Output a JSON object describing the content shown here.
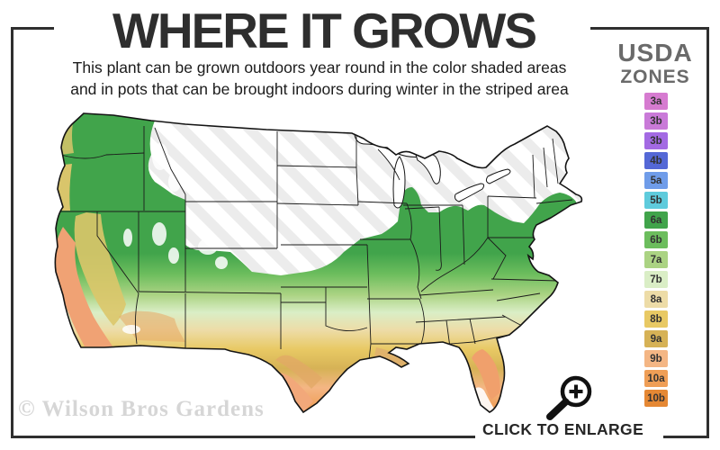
{
  "header": {
    "title": "WHERE IT GROWS",
    "subtitle_line1": "This plant can be grown outdoors year round in the color shaded areas",
    "subtitle_line2": "and in pots that can be brought indoors during winter in the striped area"
  },
  "legend": {
    "title_line1": "USDA",
    "title_line2": "ZONES",
    "zones": [
      {
        "label": "3a",
        "color": "#d67bd0"
      },
      {
        "label": "3b",
        "color": "#c97ad8"
      },
      {
        "label": "3b",
        "color": "#a36ae3"
      },
      {
        "label": "4b",
        "color": "#5468d6"
      },
      {
        "label": "5a",
        "color": "#6f9ce9"
      },
      {
        "label": "5b",
        "color": "#5ecbdc"
      },
      {
        "label": "6a",
        "color": "#41a44b"
      },
      {
        "label": "6b",
        "color": "#6cbd5d"
      },
      {
        "label": "7a",
        "color": "#abd383"
      },
      {
        "label": "7b",
        "color": "#daeec6"
      },
      {
        "label": "8a",
        "color": "#eddca7"
      },
      {
        "label": "8b",
        "color": "#e8c964"
      },
      {
        "label": "9a",
        "color": "#d6b256"
      },
      {
        "label": "9b",
        "color": "#f4b684"
      },
      {
        "label": "10a",
        "color": "#ef9e56"
      },
      {
        "label": "10b",
        "color": "#e58834"
      }
    ]
  },
  "map": {
    "stripe_color": "#ececec",
    "outline_color": "#141414",
    "coast_orange": "#f0a274",
    "coast_yellow": "#e2c76d",
    "delta_tan": "#dfae6f",
    "florida_orange": "#f0a06c"
  },
  "footer": {
    "watermark": "© Wilson Bros Gardens",
    "cta": "CLICK TO ENLARGE"
  }
}
